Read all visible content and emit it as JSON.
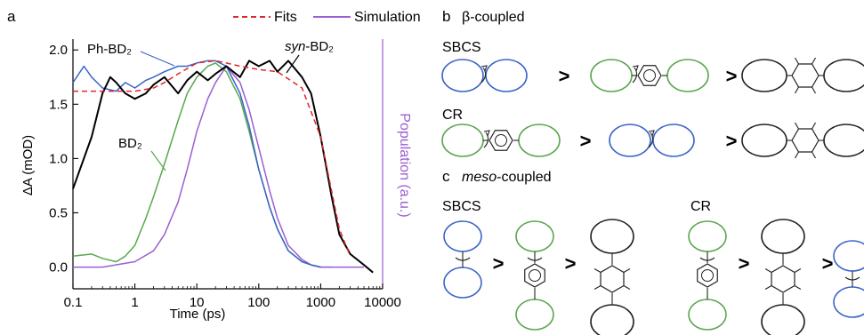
{
  "panel_labels": {
    "a": "a",
    "b": "b",
    "c": "c"
  },
  "legend": {
    "fits": "Fits",
    "simulation": "Simulation"
  },
  "colors": {
    "fits": "#e0262c",
    "simulation": "#9b5fd1",
    "syn": "#000000",
    "ph": "#3a64c8",
    "bd2": "#5aa64e"
  },
  "curve_labels": {
    "ph": "Ph-BD₂",
    "syn_italic": "syn",
    "syn_rest": "-BD₂",
    "bd2": "BD₂"
  },
  "chart_data": {
    "type": "line",
    "x_scale": "log",
    "xlabel": "Time (ps)",
    "ylabel": "ΔA (mOD)",
    "y2label": "Population (a.u.)",
    "xlim": [
      0.1,
      10000
    ],
    "ylim": [
      -0.2,
      2.1
    ],
    "xticks": [
      "0.1",
      "1",
      "10",
      "100",
      "1000",
      "10000"
    ],
    "yticks": [
      "0.0",
      "0.5",
      "1.0",
      "1.5",
      "2.0"
    ],
    "series": [
      {
        "name": "syn-BD₂",
        "color": "#000000",
        "x": [
          0.1,
          0.2,
          0.3,
          0.4,
          0.5,
          0.7,
          1,
          1.5,
          2,
          3,
          5,
          7,
          10,
          15,
          20,
          30,
          50,
          70,
          100,
          150,
          200,
          300,
          500,
          700,
          1000,
          1500,
          2000,
          3000,
          5000,
          7000
        ],
        "y": [
          0.72,
          1.2,
          1.6,
          1.75,
          1.7,
          1.6,
          1.55,
          1.6,
          1.68,
          1.75,
          1.6,
          1.72,
          1.8,
          1.72,
          1.78,
          1.85,
          1.75,
          1.9,
          1.85,
          1.9,
          1.8,
          1.9,
          1.75,
          1.6,
          1.2,
          0.65,
          0.3,
          0.12,
          0.02,
          -0.05
        ]
      },
      {
        "name": "Ph-BD₂",
        "color": "#3a64c8",
        "x": [
          0.1,
          0.15,
          0.2,
          0.3,
          0.5,
          0.7,
          1,
          1.5,
          2,
          3,
          5,
          7,
          10,
          15,
          20,
          30,
          50,
          70,
          100,
          150,
          200,
          300,
          500,
          700,
          1000
        ],
        "y": [
          1.7,
          1.85,
          1.75,
          1.65,
          1.62,
          1.7,
          1.65,
          1.72,
          1.75,
          1.8,
          1.85,
          1.85,
          1.88,
          1.9,
          1.9,
          1.85,
          1.6,
          1.3,
          0.9,
          0.55,
          0.35,
          0.15,
          0.05,
          0.02,
          0.0
        ]
      },
      {
        "name": "BD₂",
        "color": "#5aa64e",
        "x": [
          0.1,
          0.2,
          0.3,
          0.5,
          0.7,
          1,
          1.5,
          2,
          3,
          5,
          7,
          10,
          15,
          20,
          30,
          50,
          70,
          100,
          150,
          200,
          300,
          500,
          700,
          1000,
          1500
        ],
        "y": [
          0.1,
          0.12,
          0.08,
          0.05,
          0.1,
          0.2,
          0.45,
          0.65,
          0.95,
          1.35,
          1.6,
          1.75,
          1.85,
          1.88,
          1.8,
          1.55,
          1.25,
          0.9,
          0.55,
          0.35,
          0.15,
          0.05,
          0.02,
          0.0,
          0.0
        ]
      },
      {
        "name": "Fits",
        "color": "#e0262c",
        "x": [
          0.1,
          0.5,
          1,
          2,
          3,
          5,
          10,
          20,
          30,
          50,
          100,
          200,
          500,
          1000,
          1500,
          2000,
          3000
        ],
        "y": [
          1.62,
          1.62,
          1.62,
          1.65,
          1.7,
          1.78,
          1.88,
          1.9,
          1.88,
          1.85,
          1.82,
          1.8,
          1.65,
          1.2,
          0.7,
          0.35,
          0.1
        ]
      },
      {
        "name": "Simulation",
        "color": "#9b5fd1",
        "x": [
          0.1,
          0.3,
          1,
          2,
          3,
          5,
          7,
          10,
          15,
          20,
          30,
          50,
          70,
          100,
          150,
          200,
          300,
          500,
          700,
          1000,
          1500,
          2000,
          3000,
          5000
        ],
        "y": [
          0.0,
          0.0,
          0.05,
          0.15,
          0.3,
          0.6,
          0.9,
          1.25,
          1.55,
          1.7,
          1.85,
          1.7,
          1.45,
          1.1,
          0.7,
          0.45,
          0.2,
          0.07,
          0.02,
          0.0,
          0.0,
          0.0,
          0.0,
          0.0
        ]
      }
    ]
  },
  "panel_b": {
    "title_prefix": "β",
    "title_suffix": "-coupled",
    "rows": [
      {
        "label": "SBCS",
        "order": [
          "blue",
          "green-phenyl",
          "black-methyl"
        ]
      },
      {
        "label": "CR",
        "order": [
          "green-phenyl",
          "blue",
          "black-methyl"
        ]
      }
    ]
  },
  "panel_c": {
    "title_italic": "meso",
    "title_suffix": "-coupled",
    "groups": [
      {
        "label": "SBCS",
        "order": [
          "blue",
          "green-phenyl",
          "black-methyl"
        ]
      },
      {
        "label": "CR",
        "order": [
          "green-phenyl",
          "black-methyl",
          "blue"
        ]
      }
    ]
  },
  "symbols": {
    "greater": ">"
  }
}
